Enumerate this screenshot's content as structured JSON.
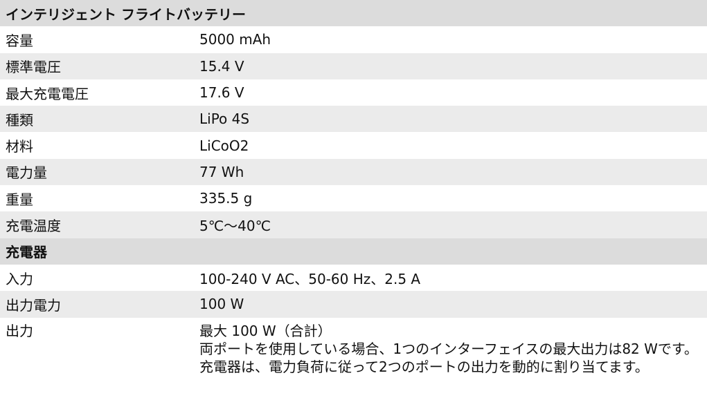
{
  "battery": {
    "title": "インテリジェント フライトバッテリー",
    "rows": [
      {
        "label": "容量",
        "value": "5000 mAh"
      },
      {
        "label": "標準電圧",
        "value": "15.4 V"
      },
      {
        "label": "最大充電電圧",
        "value": "17.6 V"
      },
      {
        "label": "種類",
        "value": "LiPo 4S"
      },
      {
        "label": "材料",
        "value": "LiCoO2"
      },
      {
        "label": "電力量",
        "value": "77 Wh"
      },
      {
        "label": "重量",
        "value": "335.5 g"
      },
      {
        "label": "充電温度",
        "value": "5℃～40℃"
      }
    ]
  },
  "charger": {
    "title": "充電器",
    "rows": [
      {
        "label": "入力",
        "value": "100-240 V AC、50-60 Hz、2.5 A"
      },
      {
        "label": "出力電力",
        "value": "100 W"
      }
    ],
    "output": {
      "label": "出力",
      "lines": [
        "最大 100 W（合計）",
        "両ポートを使用している場合、1つのインターフェイスの最大出力は82 Wです。充電器は、電力負荷に従って2つのポートの出力を動的に割り当てます。"
      ]
    }
  }
}
